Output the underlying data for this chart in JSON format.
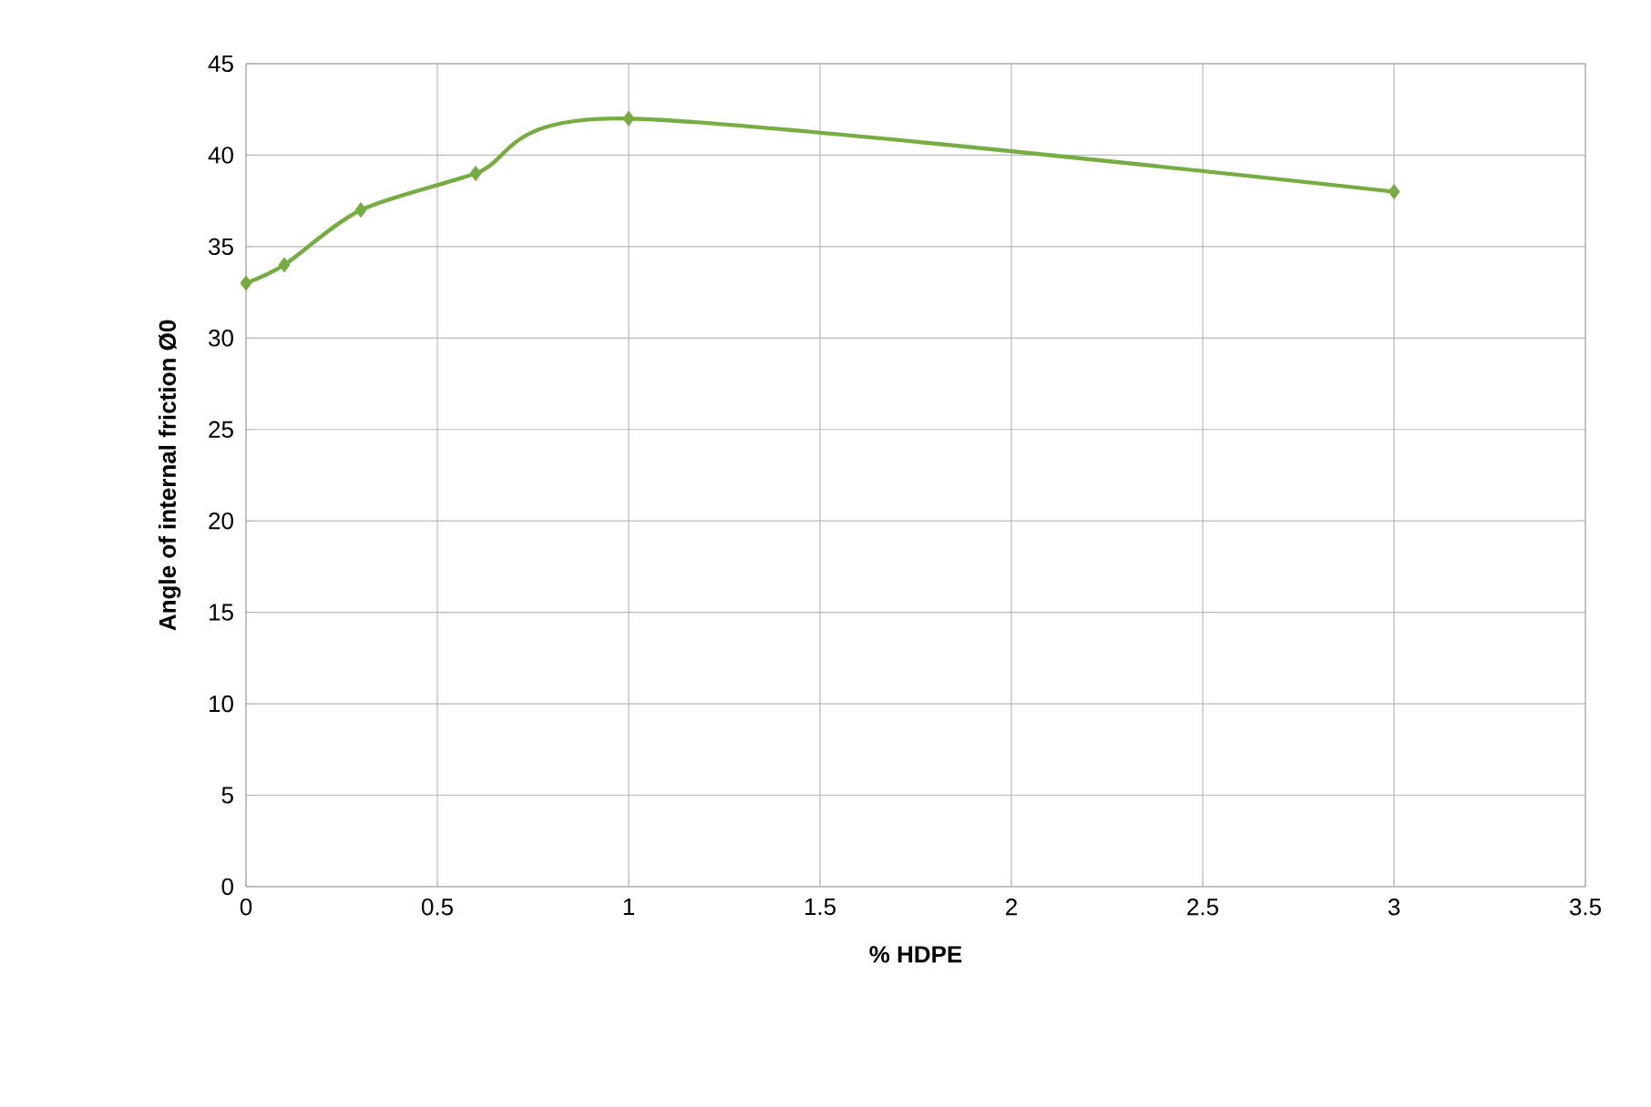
{
  "chart_data": {
    "type": "line",
    "xlabel": "% HDPE",
    "ylabel": "Angle of internal friction Ø0",
    "x": [
      0,
      0.1,
      0.3,
      0.6,
      1,
      3
    ],
    "series": [
      {
        "color": "#77ac43",
        "values": [
          33,
          34,
          37,
          39,
          42,
          38
        ]
      }
    ],
    "xlim": [
      0,
      3.5
    ],
    "xticks": [
      0,
      0.5,
      1,
      1.5,
      2,
      2.5,
      3,
      3.5
    ],
    "ylim": [
      0,
      45
    ],
    "yticks": [
      0,
      5,
      10,
      15,
      20,
      25,
      30,
      35,
      40,
      45
    ],
    "grid": true,
    "marker": "diamond",
    "line_style": "solid"
  }
}
